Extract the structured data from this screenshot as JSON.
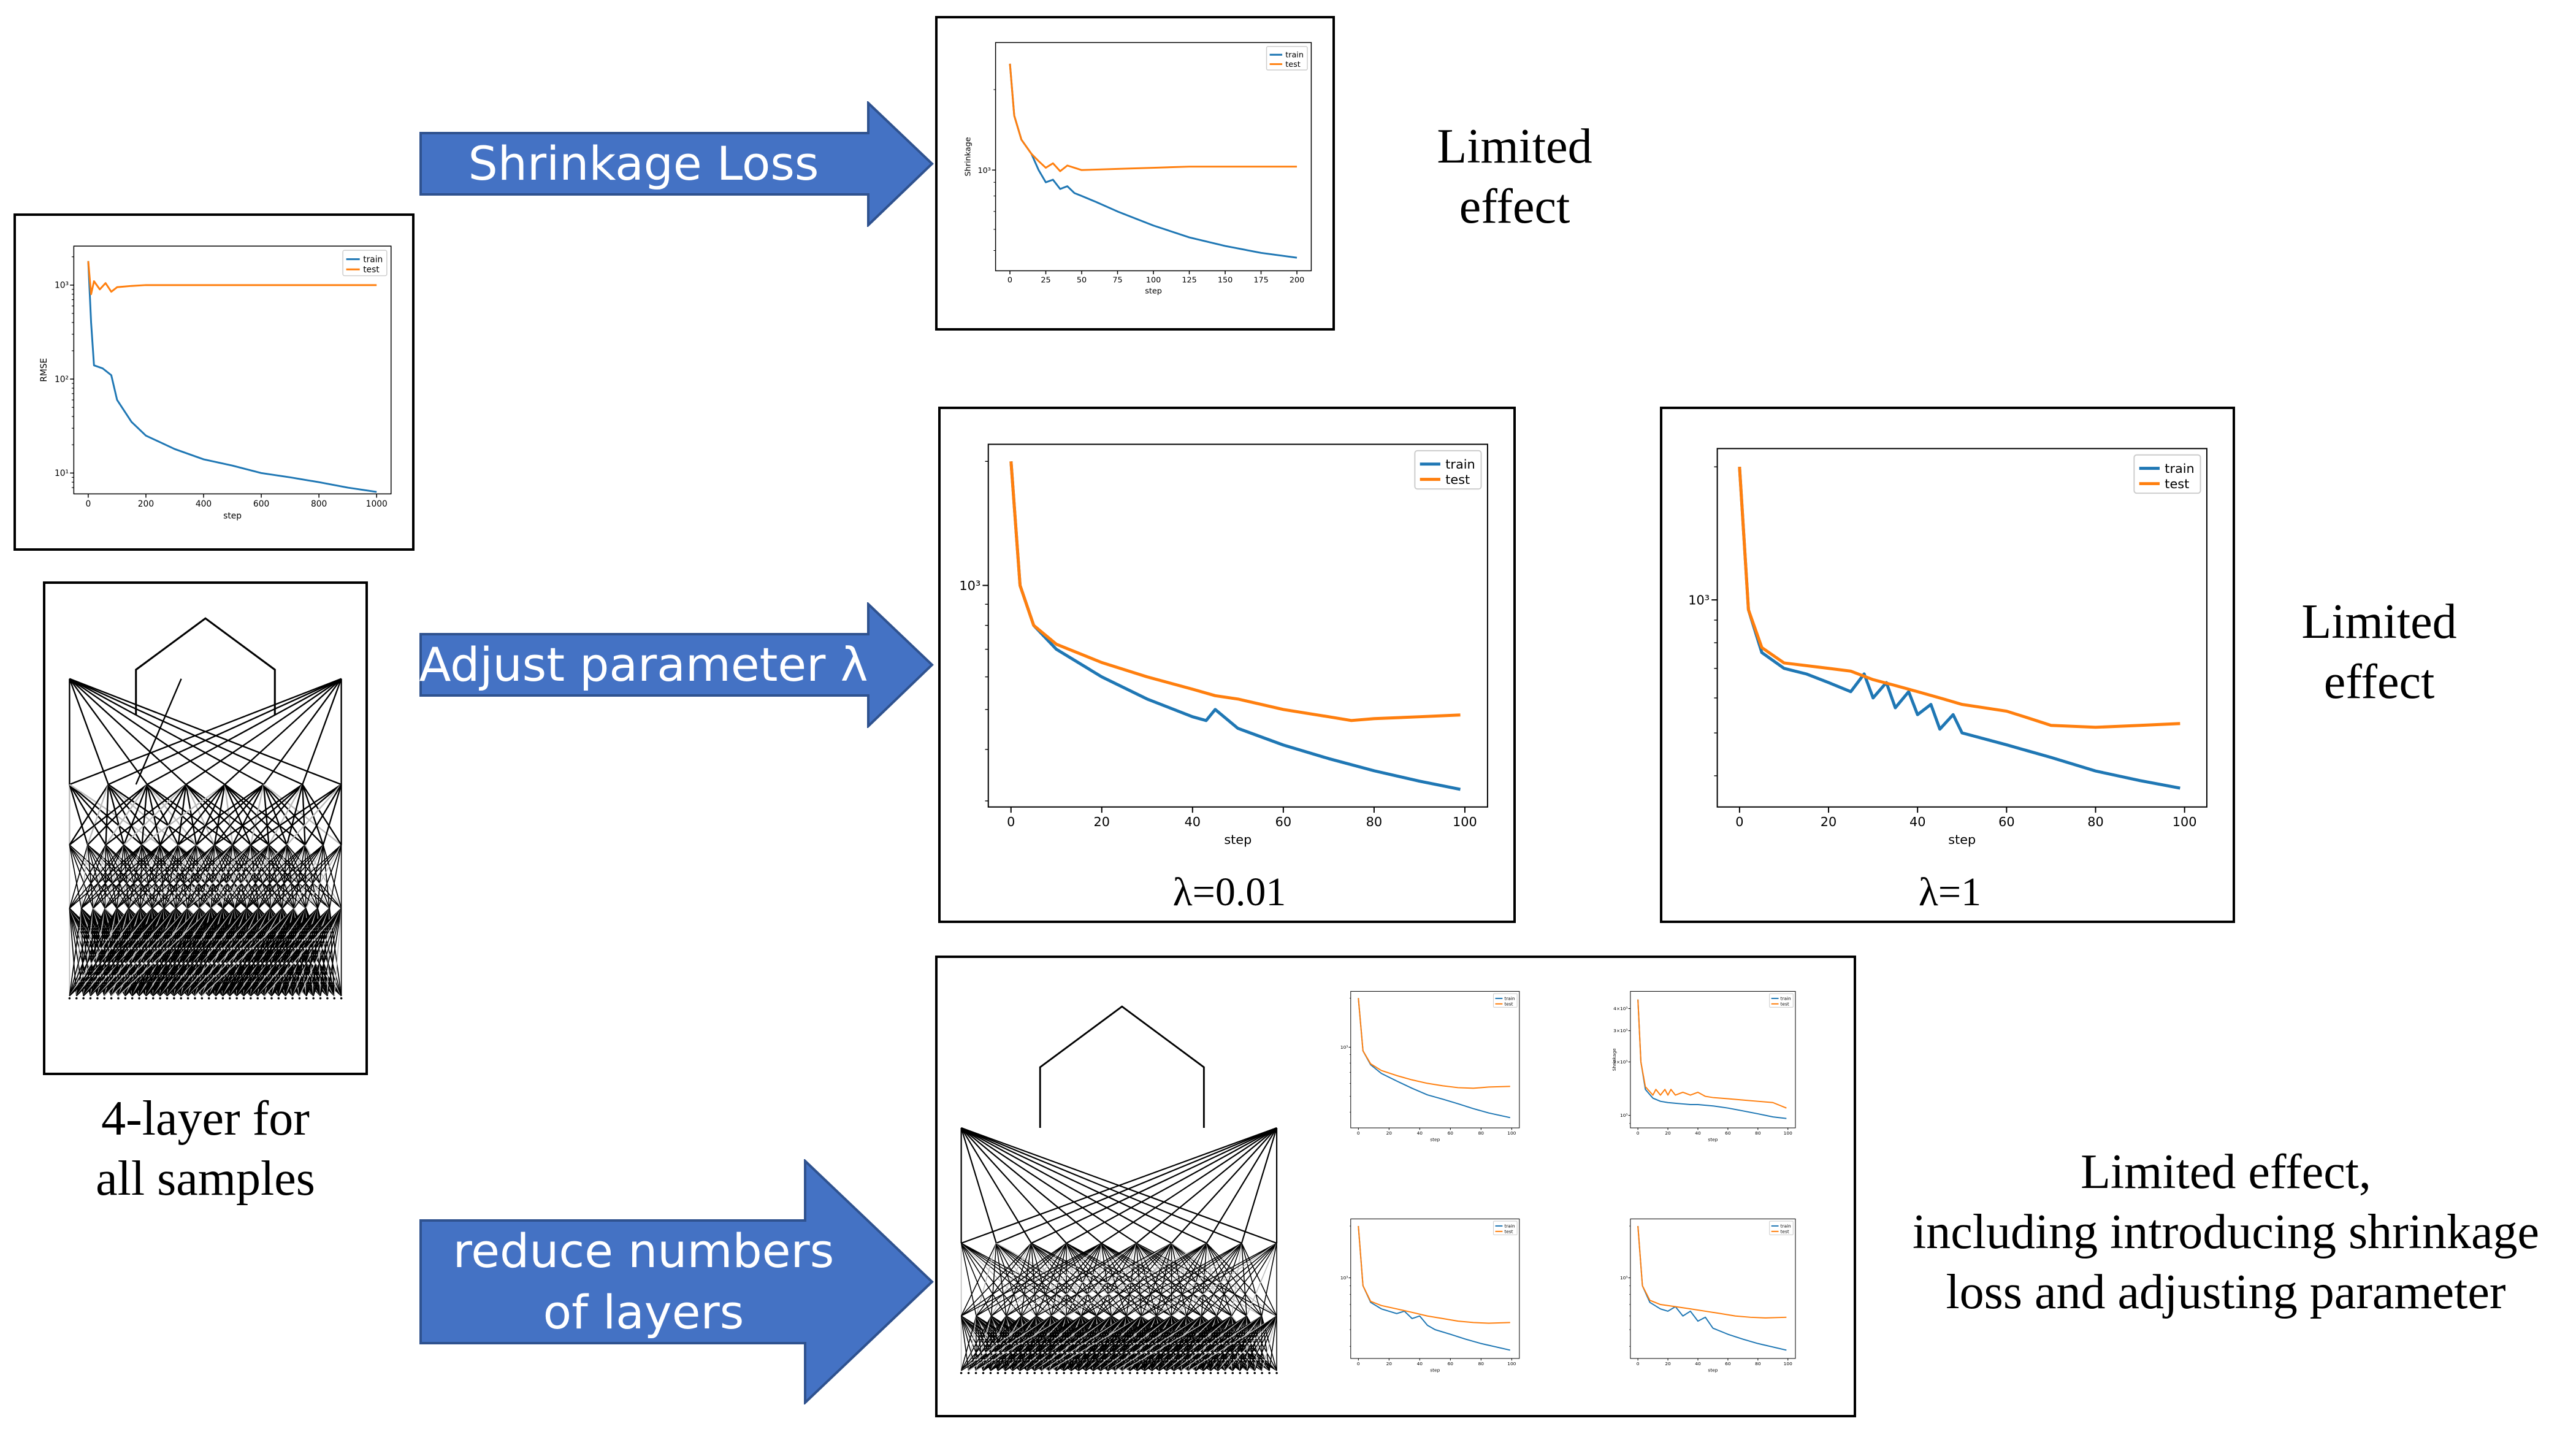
{
  "colors": {
    "arrow_fill": "#4472C4",
    "arrow_stroke": "#2F528F",
    "train": "#1f77b4",
    "test": "#ff7f0e"
  },
  "arrows": {
    "shrinkage": "Shrinkage Loss",
    "adjust": "Adjust parameter λ",
    "reduce_line1": "reduce numbers",
    "reduce_line2": "of layers"
  },
  "texts": {
    "limited_1_line1": "Limited",
    "limited_1_line2": "effect",
    "limited_2_line1": "Limited",
    "limited_2_line2": "effect",
    "limited_3_line1": "Limited effect,",
    "limited_3_line2": "including introducing shrinkage",
    "limited_3_line3": "loss and adjusting parameter",
    "four_layer_line1": "4-layer for",
    "four_layer_line2": "all samples"
  },
  "captions": {
    "lambda_001": "λ=0.01",
    "lambda_1": "λ=1"
  },
  "chart_data": [
    {
      "id": "rmse",
      "type": "line",
      "yscale": "log",
      "title": "",
      "xlabel": "step",
      "ylabel": "RMSE",
      "xticks": [
        0,
        200,
        400,
        600,
        800,
        1000
      ],
      "xlim": [
        -50,
        1050
      ],
      "ylim": [
        6,
        2600
      ],
      "yticks": [
        {
          "v": 10,
          "label": "10¹"
        },
        {
          "v": 100,
          "label": "10²"
        },
        {
          "v": 1000,
          "label": "10³"
        }
      ],
      "legend": [
        "train",
        "test"
      ],
      "legend_position": "top-right",
      "series": [
        {
          "name": "train",
          "x": [
            0,
            10,
            20,
            50,
            80,
            100,
            150,
            200,
            300,
            400,
            500,
            600,
            700,
            800,
            900,
            1000
          ],
          "y": [
            1800,
            400,
            140,
            130,
            110,
            60,
            35,
            25,
            18,
            14,
            12,
            10,
            9,
            8,
            7,
            6.3
          ]
        },
        {
          "name": "test",
          "x": [
            0,
            10,
            20,
            40,
            60,
            80,
            100,
            150,
            200,
            400,
            600,
            800,
            1000
          ],
          "y": [
            1800,
            800,
            1100,
            900,
            1050,
            850,
            950,
            980,
            1000,
            1000,
            1000,
            1000,
            1000
          ]
        }
      ]
    },
    {
      "id": "shrinkage",
      "type": "line",
      "yscale": "log",
      "title": "",
      "xlabel": "step",
      "ylabel": "Shrinkage",
      "xticks": [
        0,
        25,
        50,
        75,
        100,
        125,
        150,
        175,
        200
      ],
      "xlim": [
        -10,
        210
      ],
      "ylim": [
        420,
        3000
      ],
      "yticks": [
        {
          "v": 1000,
          "label": "10³"
        }
      ],
      "legend": [
        "train",
        "test"
      ],
      "legend_position": "top-right",
      "series": [
        {
          "name": "train",
          "x": [
            0,
            3,
            8,
            15,
            20,
            25,
            30,
            35,
            40,
            45,
            50,
            60,
            75,
            100,
            125,
            150,
            175,
            200
          ],
          "y": [
            2500,
            1600,
            1300,
            1150,
            1000,
            900,
            920,
            850,
            870,
            820,
            800,
            760,
            700,
            620,
            560,
            520,
            490,
            470
          ]
        },
        {
          "name": "test",
          "x": [
            0,
            3,
            8,
            15,
            20,
            25,
            30,
            35,
            40,
            50,
            75,
            100,
            125,
            150,
            200
          ],
          "y": [
            2500,
            1600,
            1300,
            1150,
            1080,
            1020,
            1060,
            990,
            1040,
            1000,
            1010,
            1020,
            1030,
            1030,
            1030
          ]
        }
      ]
    },
    {
      "id": "lambda001",
      "type": "line",
      "yscale": "log",
      "title": "",
      "xlabel": "step",
      "ylabel": "",
      "xticks": [
        0,
        20,
        40,
        60,
        80,
        100
      ],
      "xlim": [
        -5,
        105
      ],
      "ylim": [
        290,
        2200
      ],
      "yticks": [
        {
          "v": 1000,
          "label": "10³"
        }
      ],
      "legend": [
        "train",
        "test"
      ],
      "legend_position": "top-right",
      "series": [
        {
          "name": "train",
          "x": [
            0,
            2,
            5,
            10,
            20,
            30,
            40,
            43,
            45,
            50,
            60,
            70,
            80,
            90,
            99
          ],
          "y": [
            2000,
            1000,
            800,
            700,
            600,
            530,
            480,
            470,
            500,
            450,
            410,
            380,
            355,
            335,
            320
          ]
        },
        {
          "name": "test",
          "x": [
            0,
            2,
            5,
            10,
            20,
            30,
            40,
            45,
            50,
            60,
            70,
            75,
            80,
            90,
            99
          ],
          "y": [
            2000,
            1000,
            800,
            720,
            650,
            600,
            560,
            540,
            530,
            500,
            480,
            470,
            475,
            480,
            485
          ]
        }
      ]
    },
    {
      "id": "lambda1",
      "type": "line",
      "yscale": "log",
      "title": "",
      "xlabel": "step",
      "ylabel": "",
      "xticks": [
        0,
        20,
        40,
        60,
        80,
        100
      ],
      "xlim": [
        -5,
        105
      ],
      "ylim": [
        340,
        2200
      ],
      "yticks": [
        {
          "v": 1000,
          "label": "10³"
        }
      ],
      "legend": [
        "train",
        "test"
      ],
      "legend_position": "top-right",
      "series": [
        {
          "name": "train",
          "x": [
            0,
            2,
            5,
            10,
            15,
            20,
            25,
            28,
            30,
            33,
            35,
            38,
            40,
            43,
            45,
            48,
            50,
            60,
            70,
            80,
            90,
            99
          ],
          "y": [
            2000,
            950,
            760,
            700,
            680,
            650,
            620,
            680,
            600,
            650,
            570,
            620,
            550,
            580,
            510,
            550,
            500,
            470,
            440,
            410,
            390,
            375
          ]
        },
        {
          "name": "test",
          "x": [
            0,
            2,
            5,
            10,
            15,
            20,
            25,
            30,
            35,
            40,
            45,
            50,
            60,
            65,
            70,
            80,
            90,
            99
          ],
          "y": [
            2000,
            950,
            780,
            720,
            710,
            700,
            690,
            660,
            640,
            620,
            600,
            580,
            560,
            540,
            520,
            515,
            520,
            525
          ]
        }
      ]
    },
    {
      "id": "mini1",
      "type": "line",
      "yscale": "log",
      "title": "",
      "xlabel": "step",
      "ylabel": "",
      "xticks": [
        0,
        20,
        40,
        60,
        80,
        100
      ],
      "xlim": [
        -5,
        105
      ],
      "ylim": [
        320,
        2200
      ],
      "yticks": [
        {
          "v": 1000,
          "label": "10³"
        }
      ],
      "legend": [
        "train",
        "test"
      ],
      "legend_position": "top-right",
      "series": [
        {
          "name": "train",
          "x": [
            0,
            3,
            8,
            15,
            25,
            35,
            45,
            55,
            65,
            75,
            85,
            99
          ],
          "y": [
            2000,
            950,
            780,
            690,
            620,
            560,
            510,
            480,
            450,
            420,
            395,
            370
          ]
        },
        {
          "name": "test",
          "x": [
            0,
            3,
            8,
            15,
            25,
            35,
            45,
            55,
            65,
            75,
            85,
            99
          ],
          "y": [
            2000,
            950,
            790,
            720,
            670,
            630,
            600,
            580,
            565,
            560,
            570,
            575
          ]
        }
      ]
    },
    {
      "id": "mini2",
      "type": "line",
      "yscale": "log",
      "title": "",
      "xlabel": "step",
      "ylabel": "Shrinkage",
      "xticks": [
        0,
        20,
        40,
        60,
        80,
        100
      ],
      "xlim": [
        -5,
        105
      ],
      "ylim": [
        850,
        5000
      ],
      "yticks": [
        {
          "v": 1000,
          "label": "10³"
        },
        {
          "v": 2000,
          "label": "2×10³"
        },
        {
          "v": 3000,
          "label": "3×10³"
        },
        {
          "v": 4000,
          "label": "4×10³"
        }
      ],
      "legend": [
        "train",
        "test"
      ],
      "legend_position": "top-right",
      "series": [
        {
          "name": "train",
          "x": [
            0,
            2,
            5,
            10,
            15,
            20,
            25,
            30,
            35,
            40,
            45,
            50,
            60,
            70,
            80,
            90,
            99
          ],
          "y": [
            4500,
            2000,
            1400,
            1250,
            1200,
            1180,
            1170,
            1160,
            1150,
            1150,
            1140,
            1130,
            1100,
            1060,
            1020,
            980,
            960
          ]
        },
        {
          "name": "test",
          "x": [
            0,
            2,
            5,
            10,
            12,
            15,
            18,
            20,
            22,
            25,
            30,
            35,
            40,
            45,
            50,
            60,
            70,
            80,
            90,
            99
          ],
          "y": [
            4500,
            2000,
            1450,
            1300,
            1400,
            1300,
            1400,
            1300,
            1400,
            1300,
            1350,
            1300,
            1350,
            1280,
            1260,
            1240,
            1220,
            1200,
            1180,
            1100
          ]
        }
      ]
    },
    {
      "id": "mini3",
      "type": "line",
      "yscale": "log",
      "title": "",
      "xlabel": "step",
      "ylabel": "",
      "xticks": [
        0,
        20,
        40,
        60,
        80,
        100
      ],
      "xlim": [
        -5,
        105
      ],
      "ylim": [
        340,
        2200
      ],
      "yticks": [
        {
          "v": 1000,
          "label": "10³"
        }
      ],
      "legend": [
        "train",
        "test"
      ],
      "legend_position": "top-right",
      "series": [
        {
          "name": "train",
          "x": [
            0,
            3,
            8,
            15,
            25,
            30,
            35,
            40,
            45,
            50,
            60,
            70,
            80,
            99
          ],
          "y": [
            2000,
            900,
            720,
            660,
            620,
            640,
            580,
            600,
            530,
            500,
            470,
            440,
            415,
            380
          ]
        },
        {
          "name": "test",
          "x": [
            0,
            3,
            8,
            15,
            25,
            35,
            45,
            55,
            65,
            75,
            85,
            99
          ],
          "y": [
            2000,
            900,
            730,
            690,
            660,
            630,
            600,
            580,
            560,
            550,
            545,
            550
          ]
        }
      ]
    },
    {
      "id": "mini4",
      "type": "line",
      "yscale": "log",
      "title": "",
      "xlabel": "step",
      "ylabel": "",
      "xticks": [
        0,
        20,
        40,
        60,
        80,
        100
      ],
      "xlim": [
        -5,
        105
      ],
      "ylim": [
        340,
        2200
      ],
      "yticks": [
        {
          "v": 1000,
          "label": "10³"
        }
      ],
      "legend": [
        "train",
        "test"
      ],
      "legend_position": "top-right",
      "series": [
        {
          "name": "train",
          "x": [
            0,
            3,
            8,
            15,
            20,
            25,
            30,
            35,
            40,
            45,
            50,
            60,
            70,
            80,
            99
          ],
          "y": [
            2000,
            900,
            720,
            660,
            640,
            680,
            600,
            640,
            560,
            590,
            510,
            470,
            440,
            415,
            380
          ]
        },
        {
          "name": "test",
          "x": [
            0,
            3,
            8,
            15,
            25,
            35,
            45,
            55,
            65,
            75,
            85,
            99
          ],
          "y": [
            2000,
            900,
            740,
            700,
            680,
            660,
            640,
            620,
            600,
            590,
            585,
            590
          ]
        }
      ]
    }
  ]
}
